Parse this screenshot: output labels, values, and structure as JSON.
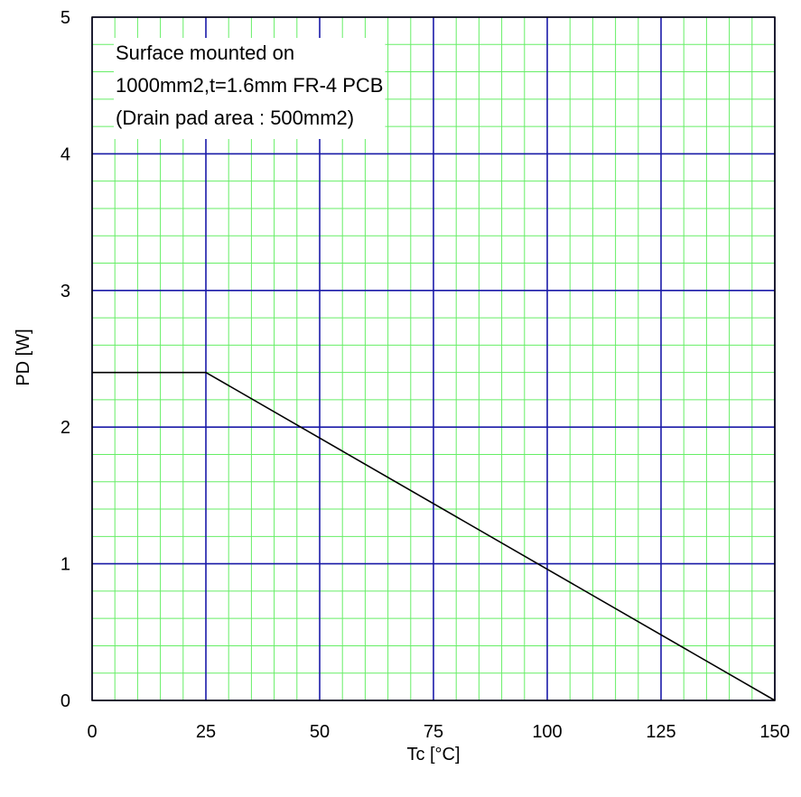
{
  "chart_data": {
    "type": "line",
    "title": "",
    "xlabel": "Tc [°C]",
    "ylabel": "PD [W]",
    "xlim": [
      0,
      150
    ],
    "ylim": [
      0,
      5
    ],
    "x_ticks": [
      0,
      25,
      50,
      75,
      100,
      125,
      150
    ],
    "y_ticks": [
      0,
      1,
      2,
      3,
      4,
      5
    ],
    "x_tick_labels": [
      "0",
      "25",
      "50",
      "75",
      "100",
      "125",
      "150"
    ],
    "y_tick_labels": [
      "0",
      "1",
      "2",
      "3",
      "4",
      "5"
    ],
    "x_minor_step": 5,
    "y_minor_step": 0.2,
    "grid": true,
    "series": [
      {
        "x": [
          0,
          25,
          150
        ],
        "y": [
          2.4,
          2.4,
          0
        ]
      }
    ],
    "annotation": [
      "Surface mounted on",
      "1000mm2,t=1.6mm FR-4 PCB",
      "(Drain pad area : 500mm2)"
    ],
    "colors": {
      "major_grid": "#1a1aa8",
      "minor_grid": "#66ee66",
      "series": "#000000",
      "frame": "#000000"
    }
  }
}
